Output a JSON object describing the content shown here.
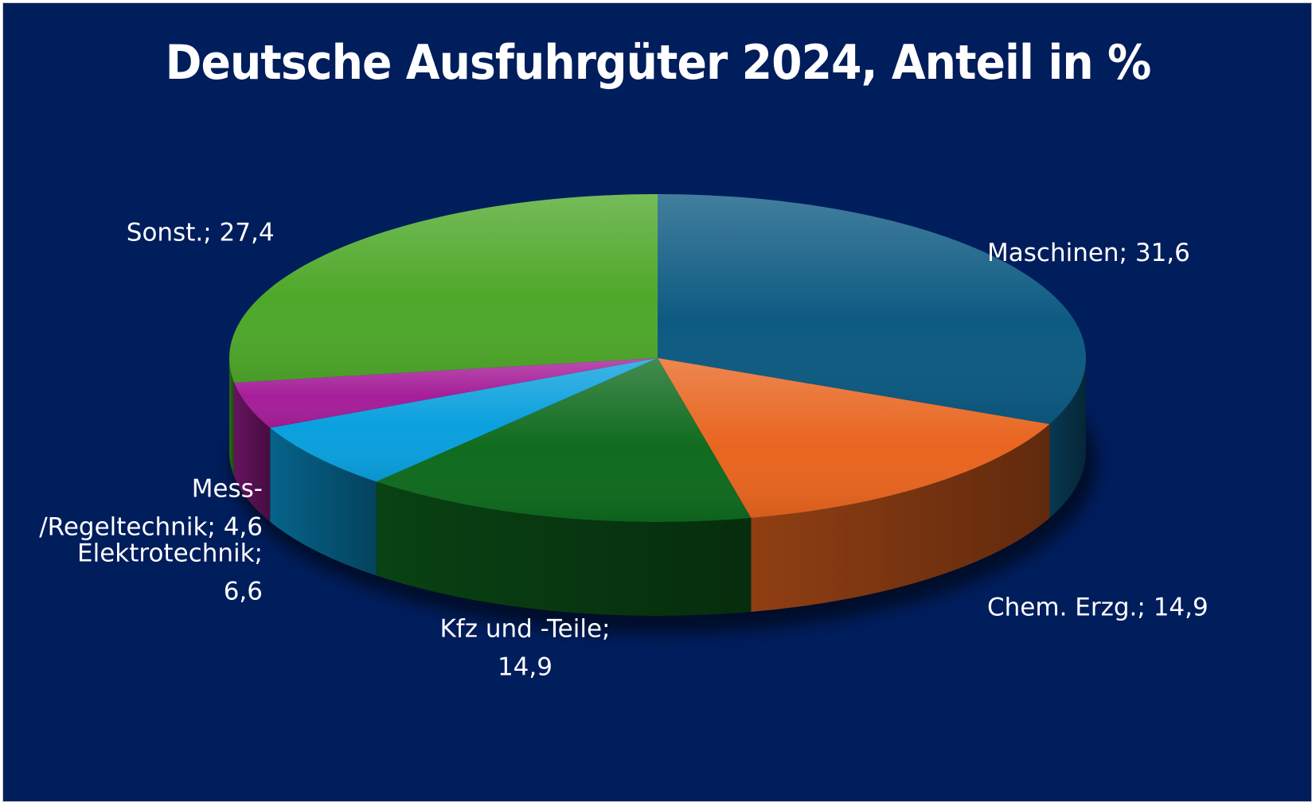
{
  "chart_data": {
    "type": "pie",
    "title": "Deutsche Ausfuhrgüter 2024, Anteil in %",
    "slices": [
      {
        "label_lines": [
          "Maschinen; 31,6"
        ],
        "value": 31.6,
        "color": "#0d5a82"
      },
      {
        "label_lines": [
          "Chem. Erzg.; 14,9"
        ],
        "value": 14.9,
        "color": "#e8651f"
      },
      {
        "label_lines": [
          "Kfz und -Teile;",
          "14,9"
        ],
        "value": 14.9,
        "color": "#0f6b1e"
      },
      {
        "label_lines": [
          "Elektrotechnik;",
          "6,6"
        ],
        "value": 6.6,
        "color": "#0aa0de"
      },
      {
        "label_lines": [
          "Mess-",
          "/Regeltechnik; 4,6"
        ],
        "value": 4.6,
        "color": "#a61e99"
      },
      {
        "label_lines": [
          "Sonst.; 27,4"
        ],
        "value": 27.4,
        "color": "#4ea82a"
      }
    ],
    "style": "3d-pie",
    "legend": "none"
  }
}
